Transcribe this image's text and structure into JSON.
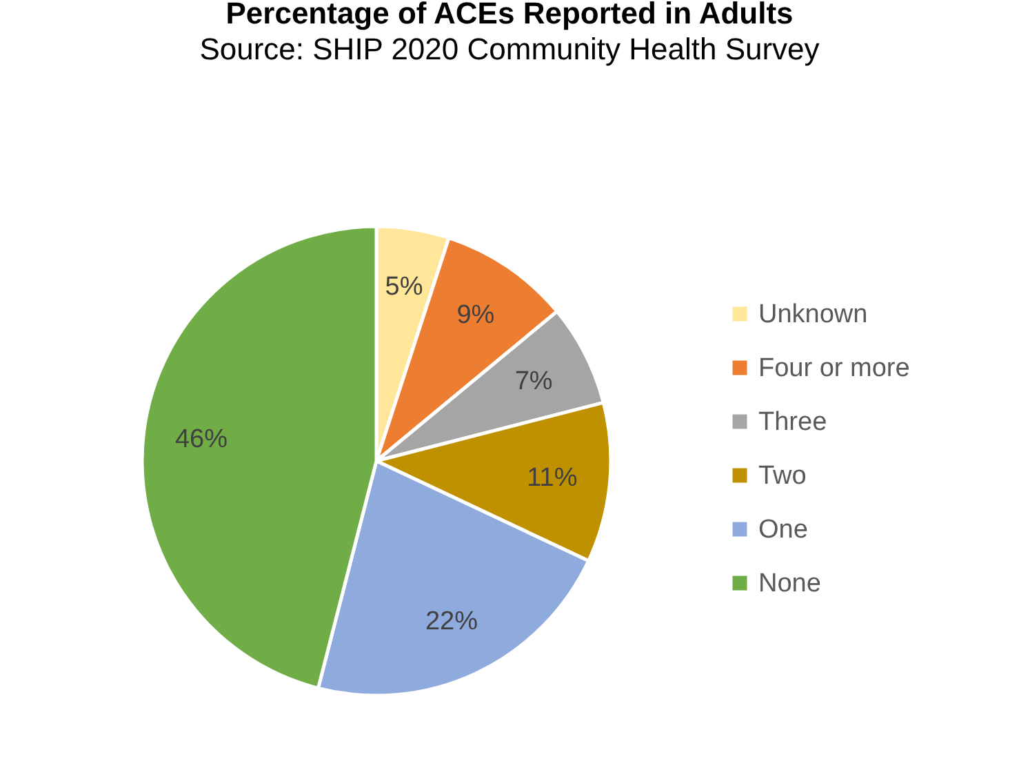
{
  "chart_data": {
    "type": "pie",
    "title": "Percentage of ACEs Reported in Adults",
    "subtitle": "Source: SHIP 2020 Community Health Survey",
    "categories": [
      "Unknown",
      "Four or more",
      "Three",
      "Two",
      "One",
      "None"
    ],
    "values": [
      5,
      9,
      7,
      11,
      22,
      46
    ],
    "colors": [
      "#ffe699",
      "#ed7d31",
      "#a5a5a5",
      "#bf9000",
      "#8faadc",
      "#70ad47"
    ],
    "value_labels": [
      "5%",
      "9%",
      "7%",
      "11%",
      "22%",
      "46%"
    ],
    "legend": "right"
  }
}
